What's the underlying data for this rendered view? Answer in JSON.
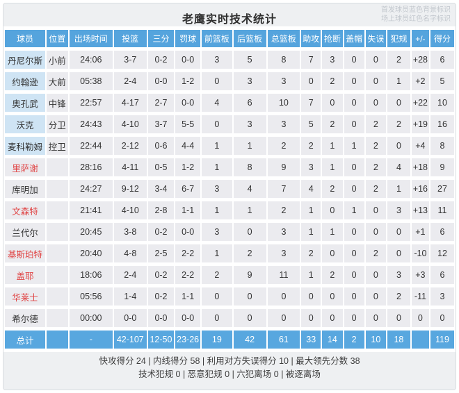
{
  "title": "老鹰实时技术统计",
  "legend": {
    "starters_note": "首发球员蓝色背景标识",
    "oncourt_note": "场上球员红色名字标识"
  },
  "colors": {
    "header_blue": "#55a4dd",
    "total_row_blue": "#58a7df",
    "starter_name_bg": "#cfe4f4",
    "oncourt_name_red": "#e04545",
    "cell_gray": "#ebebef"
  },
  "table": {
    "columns": [
      "球员",
      "位置",
      "出场时间",
      "投篮",
      "三分",
      "罚球",
      "前篮板",
      "后篮板",
      "总篮板",
      "助攻",
      "抢断",
      "盖帽",
      "失误",
      "犯规",
      "+/-",
      "得分"
    ],
    "rows": [
      {
        "name": "丹尼尔斯",
        "starter": true,
        "oncourt": false,
        "values": [
          "小前",
          "24:06",
          "3-7",
          "0-2",
          "0-0",
          "3",
          "5",
          "8",
          "7",
          "3",
          "0",
          "0",
          "2",
          "+28",
          "6"
        ]
      },
      {
        "name": "约翰逊",
        "starter": true,
        "oncourt": false,
        "values": [
          "大前",
          "05:38",
          "2-4",
          "0-0",
          "1-2",
          "0",
          "3",
          "3",
          "0",
          "2",
          "0",
          "0",
          "1",
          "+2",
          "5"
        ]
      },
      {
        "name": "奥孔武",
        "starter": true,
        "oncourt": false,
        "values": [
          "中锋",
          "22:57",
          "4-17",
          "2-7",
          "0-0",
          "4",
          "6",
          "10",
          "7",
          "0",
          "0",
          "0",
          "0",
          "+22",
          "10"
        ]
      },
      {
        "name": "沃克",
        "starter": true,
        "oncourt": false,
        "values": [
          "分卫",
          "24:43",
          "4-10",
          "3-7",
          "5-5",
          "0",
          "3",
          "3",
          "5",
          "2",
          "0",
          "2",
          "2",
          "+19",
          "16"
        ]
      },
      {
        "name": "麦科勒姆",
        "starter": true,
        "oncourt": false,
        "values": [
          "控卫",
          "22:44",
          "2-12",
          "0-6",
          "4-4",
          "1",
          "1",
          "2",
          "2",
          "1",
          "1",
          "2",
          "0",
          "+4",
          "8"
        ]
      },
      {
        "name": "里萨谢",
        "starter": false,
        "oncourt": true,
        "values": [
          "",
          "28:16",
          "4-11",
          "0-5",
          "1-2",
          "1",
          "8",
          "9",
          "3",
          "1",
          "0",
          "2",
          "4",
          "+18",
          "9"
        ]
      },
      {
        "name": "库明加",
        "starter": false,
        "oncourt": false,
        "values": [
          "",
          "24:27",
          "9-12",
          "3-4",
          "6-7",
          "3",
          "4",
          "7",
          "4",
          "2",
          "0",
          "2",
          "1",
          "+16",
          "27"
        ]
      },
      {
        "name": "文森特",
        "starter": false,
        "oncourt": true,
        "values": [
          "",
          "21:41",
          "4-10",
          "2-8",
          "1-1",
          "1",
          "1",
          "2",
          "1",
          "0",
          "1",
          "0",
          "3",
          "+13",
          "11"
        ]
      },
      {
        "name": "兰代尔",
        "starter": false,
        "oncourt": false,
        "values": [
          "",
          "20:45",
          "3-8",
          "0-2",
          "0-0",
          "3",
          "0",
          "3",
          "1",
          "1",
          "0",
          "0",
          "0",
          "+1",
          "6"
        ]
      },
      {
        "name": "基斯珀特",
        "starter": false,
        "oncourt": true,
        "values": [
          "",
          "20:40",
          "4-8",
          "2-5",
          "2-2",
          "1",
          "2",
          "3",
          "2",
          "0",
          "0",
          "2",
          "0",
          "-10",
          "12"
        ]
      },
      {
        "name": "盖耶",
        "starter": false,
        "oncourt": true,
        "values": [
          "",
          "18:06",
          "2-4",
          "0-2",
          "2-2",
          "2",
          "9",
          "11",
          "1",
          "2",
          "0",
          "0",
          "3",
          "+3",
          "6"
        ]
      },
      {
        "name": "华莱士",
        "starter": false,
        "oncourt": true,
        "values": [
          "",
          "05:56",
          "1-4",
          "0-2",
          "1-1",
          "0",
          "0",
          "0",
          "0",
          "0",
          "0",
          "0",
          "2",
          "-11",
          "3"
        ]
      },
      {
        "name": "希尔德",
        "starter": false,
        "oncourt": false,
        "values": [
          "",
          "00:00",
          "0-0",
          "0-0",
          "0-0",
          "0",
          "0",
          "0",
          "0",
          "0",
          "0",
          "0",
          "0",
          "0",
          "0"
        ]
      }
    ],
    "total": {
      "name": "总计",
      "values": [
        "",
        "-",
        "42-107",
        "12-50",
        "23-26",
        "19",
        "42",
        "61",
        "33",
        "14",
        "2",
        "10",
        "18",
        "",
        "119"
      ]
    }
  },
  "footer": {
    "line1": "快攻得分 24 | 内线得分 58 | 利用对方失误得分 10 | 最大领先分数 38",
    "line2": "技术犯规 0 | 恶意犯规 0 | 六犯离场 0 | 被逐离场"
  }
}
